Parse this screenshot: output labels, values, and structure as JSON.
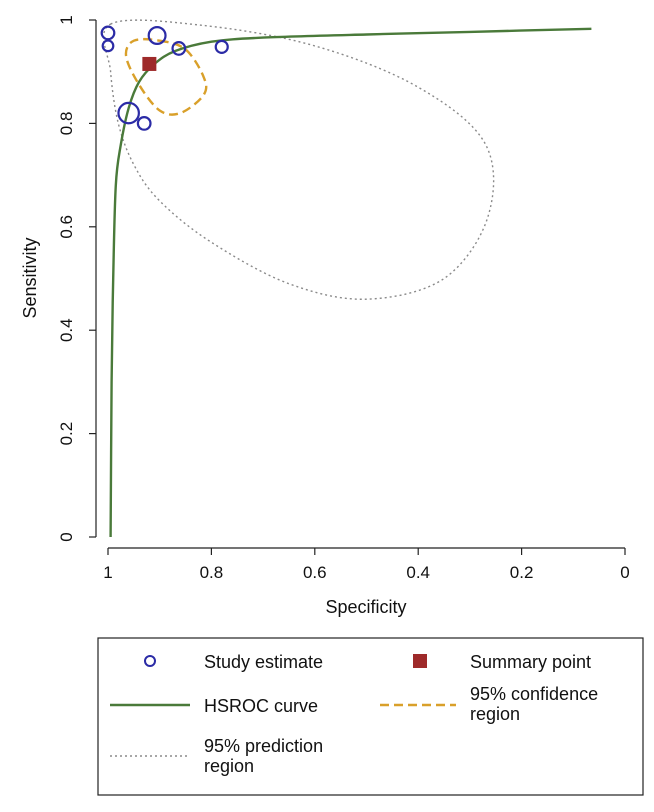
{
  "chart_data": {
    "type": "scatter",
    "title": "",
    "xlabel": "Specificity",
    "ylabel": "Sensitivity",
    "xlim": [
      1,
      0
    ],
    "ylim": [
      0,
      1
    ],
    "x_reversed": true,
    "xticks": [
      1,
      0.8,
      0.6,
      0.4,
      0.2,
      0
    ],
    "xtick_labels": [
      "1",
      "0.8",
      "0.6",
      "0.4",
      "0.2",
      "0"
    ],
    "yticks": [
      0,
      0.2,
      0.4,
      0.6,
      0.8,
      1
    ],
    "ytick_labels": [
      "0",
      "0.2",
      "0.4",
      "0.6",
      "0.8",
      "1"
    ],
    "grid": false,
    "legend_position": "bottom",
    "colors": {
      "study": "#2b2ba6",
      "summary": "#9e2a2a",
      "hsroc": "#4a7a3a",
      "confidence": "#d9a02a",
      "prediction": "#8a8a8a"
    },
    "series": [
      {
        "name": "Study estimate",
        "type": "scatter",
        "points": [
          {
            "spec": 1.0,
            "sens": 0.975,
            "weight": 0.9
          },
          {
            "spec": 1.0,
            "sens": 0.95,
            "weight": 0.75
          },
          {
            "spec": 0.905,
            "sens": 0.97,
            "weight": 1.2
          },
          {
            "spec": 0.863,
            "sens": 0.945,
            "weight": 0.9
          },
          {
            "spec": 0.78,
            "sens": 0.948,
            "weight": 0.85
          },
          {
            "spec": 0.96,
            "sens": 0.82,
            "weight": 1.45
          },
          {
            "spec": 0.93,
            "sens": 0.8,
            "weight": 0.9
          }
        ]
      },
      {
        "name": "Summary point",
        "type": "point",
        "points": [
          {
            "spec": 0.92,
            "sens": 0.915
          }
        ]
      },
      {
        "name": "HSROC curve",
        "type": "line",
        "points": [
          {
            "spec": 0.995,
            "sens": 0.0
          },
          {
            "spec": 0.993,
            "sens": 0.3
          },
          {
            "spec": 0.99,
            "sens": 0.5
          },
          {
            "spec": 0.985,
            "sens": 0.68
          },
          {
            "spec": 0.975,
            "sens": 0.76
          },
          {
            "spec": 0.96,
            "sens": 0.83
          },
          {
            "spec": 0.94,
            "sens": 0.88
          },
          {
            "spec": 0.91,
            "sens": 0.915
          },
          {
            "spec": 0.87,
            "sens": 0.94
          },
          {
            "spec": 0.8,
            "sens": 0.958
          },
          {
            "spec": 0.7,
            "sens": 0.966
          },
          {
            "spec": 0.5,
            "sens": 0.972
          },
          {
            "spec": 0.3,
            "sens": 0.977
          },
          {
            "spec": 0.065,
            "sens": 0.983
          }
        ]
      },
      {
        "name": "95% confidence region",
        "type": "closed-curve",
        "points": [
          {
            "spec": 0.9,
            "sens": 0.96
          },
          {
            "spec": 0.85,
            "sens": 0.943
          },
          {
            "spec": 0.815,
            "sens": 0.89
          },
          {
            "spec": 0.815,
            "sens": 0.855
          },
          {
            "spec": 0.86,
            "sens": 0.82
          },
          {
            "spec": 0.9,
            "sens": 0.825
          },
          {
            "spec": 0.94,
            "sens": 0.875
          },
          {
            "spec": 0.965,
            "sens": 0.93
          },
          {
            "spec": 0.95,
            "sens": 0.96
          }
        ]
      },
      {
        "name": "95% prediction region",
        "type": "closed-curve",
        "points": [
          {
            "spec": 0.995,
            "sens": 0.992
          },
          {
            "spec": 0.82,
            "sens": 0.99
          },
          {
            "spec": 0.6,
            "sens": 0.95
          },
          {
            "spec": 0.4,
            "sens": 0.87
          },
          {
            "spec": 0.27,
            "sens": 0.76
          },
          {
            "spec": 0.265,
            "sens": 0.62
          },
          {
            "spec": 0.35,
            "sens": 0.5
          },
          {
            "spec": 0.5,
            "sens": 0.46
          },
          {
            "spec": 0.65,
            "sens": 0.49
          },
          {
            "spec": 0.8,
            "sens": 0.57
          },
          {
            "spec": 0.9,
            "sens": 0.65
          },
          {
            "spec": 0.95,
            "sens": 0.72
          },
          {
            "spec": 0.98,
            "sens": 0.8
          },
          {
            "spec": 0.995,
            "sens": 0.9
          }
        ]
      }
    ],
    "legend": [
      {
        "key": "study",
        "label_lines": [
          "Study estimate"
        ]
      },
      {
        "key": "summary",
        "label_lines": [
          "Summary point"
        ]
      },
      {
        "key": "hsroc",
        "label_lines": [
          "HSROC curve"
        ]
      },
      {
        "key": "confidence",
        "label_lines": [
          "95% confidence",
          "region"
        ]
      },
      {
        "key": "prediction",
        "label_lines": [
          "95% prediction",
          "region"
        ]
      }
    ]
  }
}
